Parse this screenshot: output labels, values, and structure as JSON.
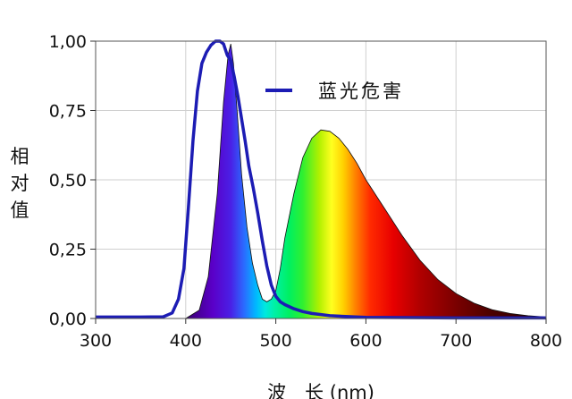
{
  "chart_data": {
    "type": "line",
    "title": "",
    "xlabel": "波　长 (nm)",
    "ylabel_chars": [
      "相",
      "对",
      "值"
    ],
    "xlim": [
      300,
      800
    ],
    "ylim": [
      0,
      1
    ],
    "x_ticks": [
      300,
      400,
      500,
      600,
      700,
      800
    ],
    "x_tick_labels": [
      "300",
      "400",
      "500",
      "600",
      "700",
      "800"
    ],
    "y_ticks": [
      0,
      0.25,
      0.5,
      0.75,
      1.0
    ],
    "y_tick_labels": [
      "0,00",
      "0,25",
      "0,50",
      "0,75",
      "1,00"
    ],
    "grid": true,
    "legend_position": "top-right",
    "series": [
      {
        "name": "蓝光危害",
        "color": "#1c1cb4",
        "style": "line",
        "x": [
          300,
          350,
          375,
          385,
          392,
          398,
          403,
          408,
          413,
          418,
          423,
          428,
          433,
          438,
          442,
          446,
          450,
          454,
          458,
          462,
          466,
          470,
          475,
          480,
          485,
          490,
          495,
          500,
          505,
          510,
          520,
          530,
          540,
          560,
          600,
          700,
          800
        ],
        "values": [
          0.005,
          0.005,
          0.006,
          0.02,
          0.07,
          0.18,
          0.4,
          0.64,
          0.82,
          0.92,
          0.96,
          0.985,
          1.0,
          1.0,
          0.99,
          0.95,
          0.93,
          0.87,
          0.8,
          0.72,
          0.64,
          0.55,
          0.47,
          0.38,
          0.28,
          0.19,
          0.12,
          0.08,
          0.06,
          0.05,
          0.035,
          0.025,
          0.018,
          0.01,
          0.004,
          0.002,
          0.002
        ]
      },
      {
        "name": "",
        "style": "spectrum-fill",
        "x": [
          400,
          415,
          425,
          435,
          442,
          447,
          450,
          453,
          457,
          462,
          468,
          474,
          480,
          485,
          490,
          495,
          500,
          505,
          510,
          520,
          530,
          540,
          550,
          560,
          570,
          580,
          590,
          600,
          620,
          640,
          660,
          680,
          700,
          720,
          740,
          760,
          780,
          800
        ],
        "values": [
          0.0,
          0.03,
          0.15,
          0.45,
          0.78,
          0.95,
          0.99,
          0.92,
          0.75,
          0.52,
          0.33,
          0.2,
          0.12,
          0.07,
          0.06,
          0.07,
          0.1,
          0.18,
          0.29,
          0.45,
          0.58,
          0.65,
          0.68,
          0.675,
          0.65,
          0.61,
          0.56,
          0.5,
          0.4,
          0.3,
          0.21,
          0.14,
          0.09,
          0.055,
          0.032,
          0.018,
          0.01,
          0.005
        ]
      }
    ]
  }
}
